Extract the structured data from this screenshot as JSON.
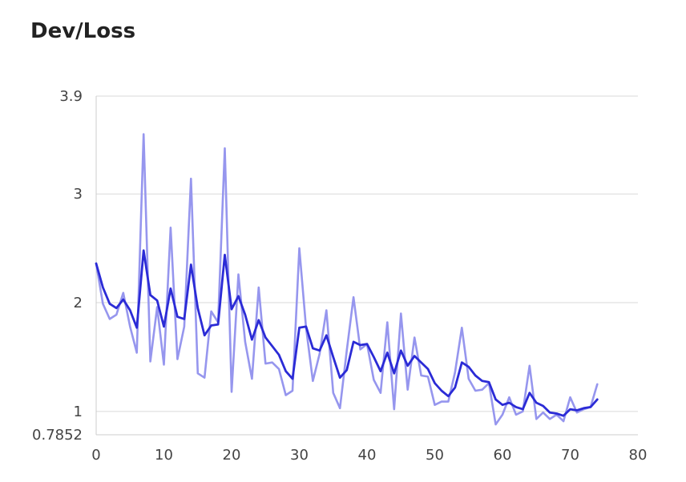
{
  "chart_data": {
    "type": "line",
    "title": "Dev/Loss",
    "xlabel": "",
    "ylabel": "",
    "xlim": [
      0,
      80
    ],
    "ylim": [
      0.7852,
      3.9
    ],
    "x_ticks": [
      0,
      10,
      20,
      30,
      40,
      50,
      60,
      70,
      80
    ],
    "y_ticks": [
      "0.7852",
      "1",
      "2",
      "3",
      "3.9"
    ],
    "grid": true,
    "colors": {
      "raw": "#9696ee",
      "smoothed": "#2b2bd6",
      "grid": "#d9d9d9"
    },
    "series": [
      {
        "name": "",
        "style": "raw",
        "x": [
          0,
          1,
          2,
          3,
          4,
          5,
          6,
          7,
          8,
          9,
          10,
          11,
          12,
          13,
          14,
          15,
          16,
          17,
          18,
          19,
          20,
          21,
          22,
          23,
          24,
          25,
          26,
          27,
          28,
          29,
          30,
          31,
          32,
          33,
          34,
          35,
          36,
          37,
          38,
          39,
          40,
          41,
          42,
          43,
          44,
          45,
          46,
          47,
          48,
          49,
          50,
          51,
          52,
          53,
          54,
          55,
          56,
          57,
          58,
          59,
          60,
          61,
          62,
          63,
          64,
          65,
          66,
          67,
          68,
          69,
          70,
          71,
          72,
          73,
          74
        ],
        "values": [
          2.36,
          1.99,
          1.85,
          1.89,
          2.09,
          1.78,
          1.54,
          3.55,
          1.46,
          1.96,
          1.43,
          2.69,
          1.48,
          1.78,
          3.14,
          1.35,
          1.31,
          1.92,
          1.82,
          3.42,
          1.18,
          2.26,
          1.64,
          1.3,
          2.14,
          1.44,
          1.45,
          1.39,
          1.15,
          1.19,
          2.5,
          1.77,
          1.28,
          1.53,
          1.93,
          1.17,
          1.03,
          1.56,
          2.05,
          1.57,
          1.62,
          1.29,
          1.17,
          1.82,
          1.02,
          1.9,
          1.2,
          1.68,
          1.33,
          1.32,
          1.06,
          1.09,
          1.09,
          1.36,
          1.77,
          1.3,
          1.19,
          1.2,
          1.26,
          0.88,
          0.97,
          1.13,
          0.97,
          1.0,
          1.42,
          0.93,
          0.99,
          0.93,
          0.97,
          0.91,
          1.13,
          0.99,
          1.02,
          1.04,
          1.25
        ]
      },
      {
        "name": "",
        "style": "smoothed",
        "x": [
          0,
          1,
          2,
          3,
          4,
          5,
          6,
          7,
          8,
          9,
          10,
          11,
          12,
          13,
          14,
          15,
          16,
          17,
          18,
          19,
          20,
          21,
          22,
          23,
          24,
          25,
          26,
          27,
          28,
          29,
          30,
          31,
          32,
          33,
          34,
          35,
          36,
          37,
          38,
          39,
          40,
          41,
          42,
          43,
          44,
          45,
          46,
          47,
          48,
          49,
          50,
          51,
          52,
          53,
          54,
          55,
          56,
          57,
          58,
          59,
          60,
          61,
          62,
          63,
          64,
          65,
          66,
          67,
          68,
          69,
          70,
          71,
          72,
          73,
          74
        ],
        "values": [
          2.36,
          2.14,
          1.99,
          1.95,
          2.03,
          1.93,
          1.77,
          2.48,
          2.07,
          2.02,
          1.78,
          2.13,
          1.87,
          1.85,
          2.35,
          1.95,
          1.7,
          1.79,
          1.8,
          2.44,
          1.94,
          2.06,
          1.89,
          1.66,
          1.84,
          1.68,
          1.6,
          1.52,
          1.37,
          1.3,
          1.77,
          1.78,
          1.58,
          1.56,
          1.7,
          1.5,
          1.31,
          1.38,
          1.64,
          1.61,
          1.62,
          1.5,
          1.37,
          1.54,
          1.35,
          1.56,
          1.42,
          1.51,
          1.45,
          1.39,
          1.26,
          1.19,
          1.14,
          1.22,
          1.45,
          1.41,
          1.33,
          1.28,
          1.27,
          1.11,
          1.06,
          1.08,
          1.04,
          1.02,
          1.17,
          1.08,
          1.05,
          0.99,
          0.98,
          0.96,
          1.02,
          1.01,
          1.03,
          1.04,
          1.11
        ]
      }
    ]
  }
}
